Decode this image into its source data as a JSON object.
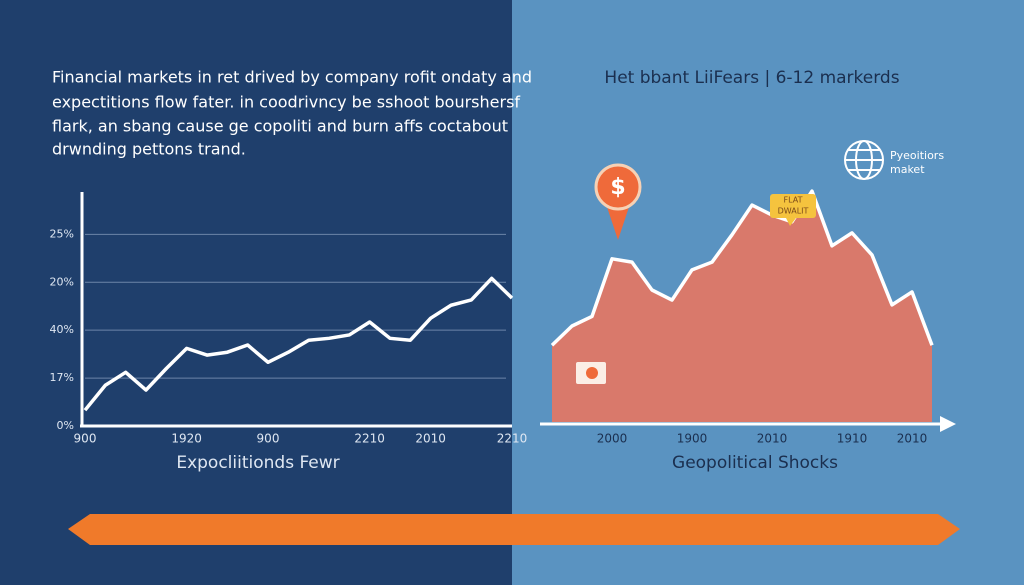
{
  "chart_data": [
    {
      "type": "line",
      "description": [
        "Financial markets in ret drived by company rofit ondaty and",
        "expectitions flow fater. in coodrivncy be sshoot bourshersf",
        "flark, an sbang cause ge copoliti and burn affs coctabout",
        "drwnding pettons trand."
      ],
      "x_label": "Expocliitionds Fewr",
      "categories": [
        "900",
        null,
        null,
        null,
        null,
        "1920",
        null,
        null,
        null,
        "900",
        null,
        null,
        null,
        null,
        "2210",
        null,
        null,
        "2010",
        null,
        null,
        null,
        "2210"
      ],
      "values": [
        0.33,
        0.85,
        1.12,
        0.75,
        1.2,
        1.62,
        1.48,
        1.54,
        1.69,
        1.33,
        1.54,
        1.79,
        1.83,
        1.9,
        2.17,
        1.83,
        1.79,
        2.25,
        2.52,
        2.63,
        3.08,
        2.67
      ],
      "color": "#ffffff",
      "ylim": [
        0,
        4.8
      ],
      "yticks": [
        {
          "value": 0,
          "label": "0%"
        },
        {
          "value": 1,
          "label": "17%"
        },
        {
          "value": 2,
          "label": "40%"
        },
        {
          "value": 3,
          "label": "20%"
        },
        {
          "value": 4,
          "label": "25%"
        }
      ],
      "grid": true
    },
    {
      "type": "area",
      "title": "Het bbant LiiFears | 6-12 markerds",
      "x_label": "Geopolitical Shocks",
      "annotations": [
        "$",
        "FLAT",
        "DWALIT",
        "Pyeoitiors",
        "maket"
      ],
      "categories": [
        null,
        null,
        null,
        "2000",
        null,
        null,
        null,
        "1900",
        null,
        null,
        null,
        "2010",
        null,
        null,
        null,
        "1910",
        null,
        null,
        "2010",
        null
      ],
      "values": [
        1.6,
        2.0,
        2.2,
        3.4,
        3.33,
        2.75,
        2.54,
        3.17,
        3.33,
        3.9,
        4.52,
        4.31,
        4.17,
        4.81,
        3.67,
        3.94,
        3.48,
        2.44,
        2.71,
        1.6
      ],
      "color": "#d9796b",
      "ylim": [
        0,
        5
      ]
    }
  ]
}
